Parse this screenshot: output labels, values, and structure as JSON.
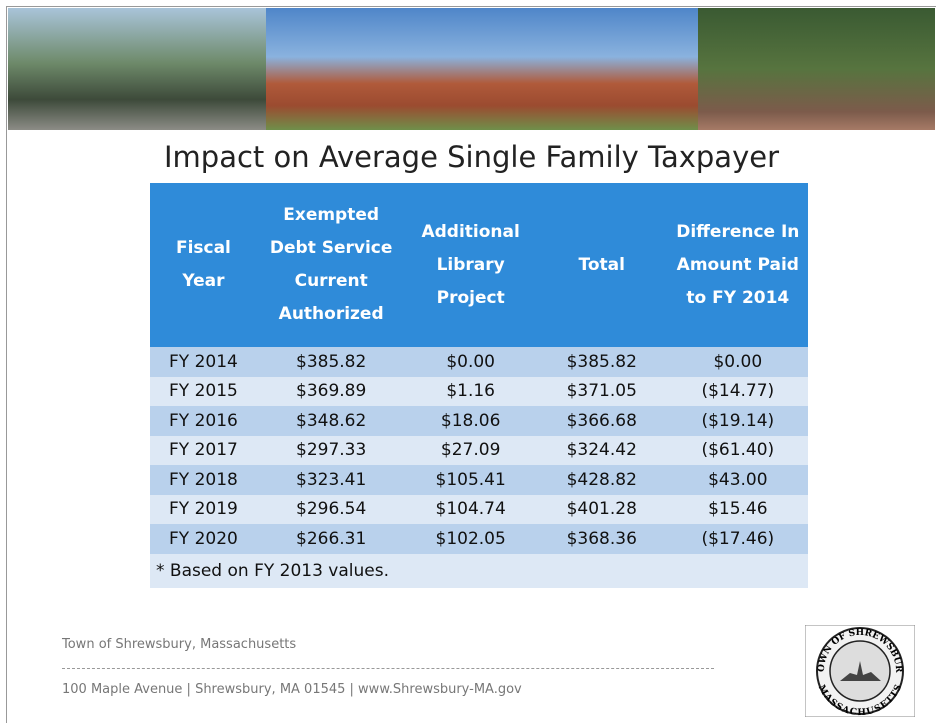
{
  "title": "Impact on Average Single Family Taxpayer",
  "table": {
    "headers": [
      "Fiscal Year",
      "Exempted Debt Service Current Authorized",
      "Additional Library Project",
      "Total",
      "Difference In Amount Paid to FY 2014"
    ],
    "rows": [
      [
        "FY 2014",
        "$385.82",
        "$0.00",
        "$385.82",
        "$0.00"
      ],
      [
        "FY 2015",
        "$369.89",
        "$1.16",
        "$371.05",
        "($14.77)"
      ],
      [
        "FY 2016",
        "$348.62",
        "$18.06",
        "$366.68",
        "($19.14)"
      ],
      [
        "FY 2017",
        "$297.33",
        "$27.09",
        "$324.42",
        "($61.40)"
      ],
      [
        "FY 2018",
        "$323.41",
        "$105.41",
        "$428.82",
        "$43.00"
      ],
      [
        "FY 2019",
        "$296.54",
        "$104.74",
        "$401.28",
        "$15.46"
      ],
      [
        "FY 2020",
        "$266.31",
        "$102.05",
        "$368.36",
        "($17.46)"
      ]
    ],
    "footnote": "* Based on FY 2013 values."
  },
  "footer": {
    "town": "Town of Shrewsbury, Massachusetts",
    "address": "100 Maple Avenue | Shrewsbury, MA 01545 | www.Shrewsbury-MA.gov"
  },
  "seal": {
    "top": "TOWN OF SHREWSBURY",
    "bottom": "MASSACHUSETTS"
  }
}
